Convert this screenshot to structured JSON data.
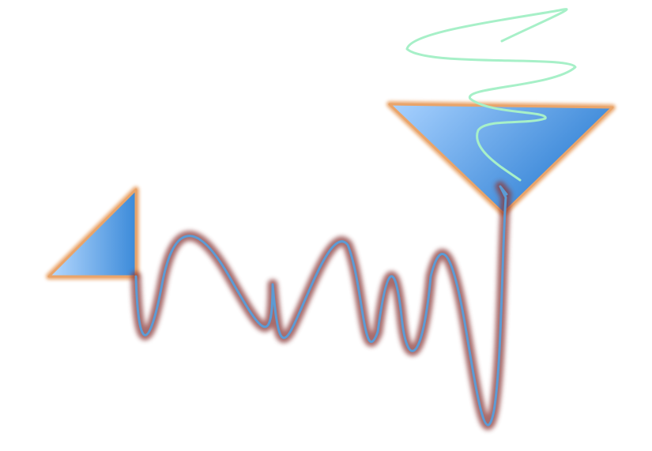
{
  "shapes": [
    {
      "kind": "triangle",
      "name": "left-triangle",
      "fill_light": "#b8daff",
      "fill_dark": "#3b8ad9",
      "outline": "#e9a46a"
    },
    {
      "kind": "triangle",
      "name": "right-triangle",
      "fill_light": "#a9d2ff",
      "fill_dark": "#2f80d4",
      "outline": "#e9a46a"
    }
  ],
  "connectors": [
    {
      "kind": "wavy-line",
      "name": "main-wave-line",
      "stroke": "#5b9bd5",
      "glow": "#8b3a3a"
    },
    {
      "kind": "wavy-line",
      "name": "green-squiggle-line",
      "stroke": "#a7f0c8"
    }
  ]
}
